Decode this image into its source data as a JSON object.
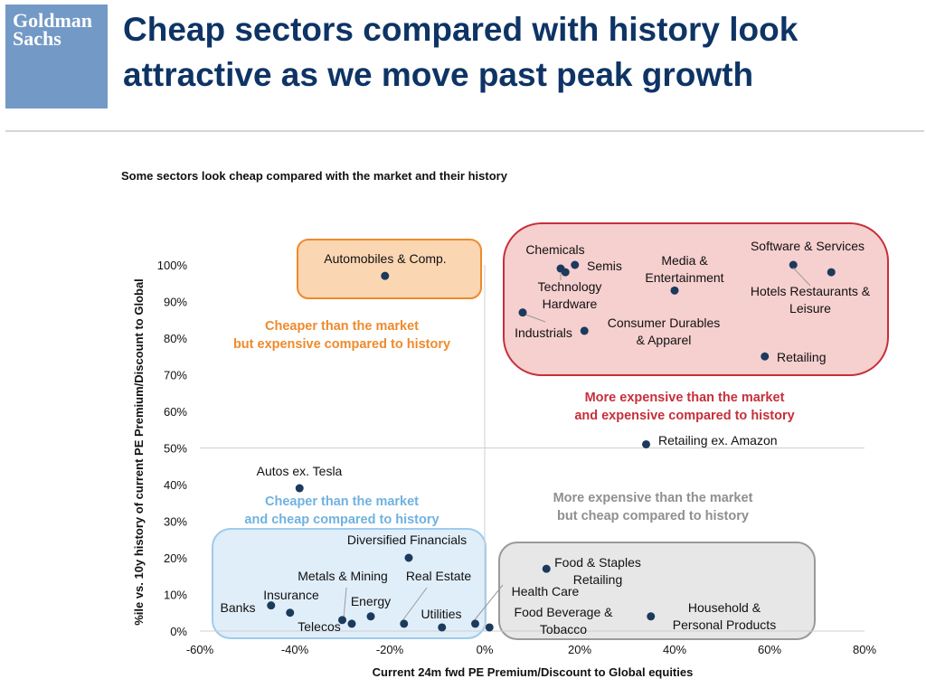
{
  "header": {
    "logo_line1": "Goldman",
    "logo_line2": "Sachs",
    "title": "Cheap sectors compared with history look attractive as we move past peak growth"
  },
  "colors": {
    "title": "#0e3465",
    "point": "#1b3a5c",
    "orange": "#ef8a2c",
    "red": "#c72f3a",
    "blue": "#6fb2e0",
    "grey": "#8f8f8f"
  },
  "chart_data": {
    "type": "scatter",
    "title": "Some sectors look cheap compared with the market and their history",
    "xlabel": "Current 24m fwd PE Premium/Discount to Global equities",
    "ylabel": "%ile vs. 10y history of current PE Premium/Discount to Global",
    "xlim": [
      -60,
      80
    ],
    "ylim": [
      0,
      100
    ],
    "x_ticks": [
      "-60%",
      "-40%",
      "-20%",
      "0%",
      "20%",
      "40%",
      "60%",
      "80%"
    ],
    "y_ticks": [
      "0%",
      "10%",
      "20%",
      "30%",
      "40%",
      "50%",
      "60%",
      "70%",
      "80%",
      "90%",
      "100%"
    ],
    "gridlines": false,
    "reference_lines": {
      "x": 0,
      "y": 50
    },
    "points": [
      {
        "label": "Automobiles & Comp.",
        "x": -21,
        "y": 97
      },
      {
        "label": "Chemicals",
        "x": 16,
        "y": 99
      },
      {
        "label": "Semis",
        "x": 19,
        "y": 100
      },
      {
        "label": "Technology Hardware",
        "x": 17,
        "y": 98
      },
      {
        "label": "Media & Entertainment",
        "x": 40,
        "y": 93
      },
      {
        "label": "Software & Services",
        "x": 65,
        "y": 100
      },
      {
        "label": "Hotels Restaurants & Leisure",
        "x": 73,
        "y": 98
      },
      {
        "label": "Industrials",
        "x": 8,
        "y": 87
      },
      {
        "label": "Consumer Durables & Apparel",
        "x": 21,
        "y": 82
      },
      {
        "label": "Retailing",
        "x": 59,
        "y": 75
      },
      {
        "label": "Retailing ex. Amazon",
        "x": 34,
        "y": 51
      },
      {
        "label": "Autos ex. Tesla",
        "x": -39,
        "y": 39
      },
      {
        "label": "Diversified Financials",
        "x": -16,
        "y": 20
      },
      {
        "label": "Food & Staples Retailing",
        "x": 13,
        "y": 17
      },
      {
        "label": "Banks",
        "x": -45,
        "y": 7
      },
      {
        "label": "Insurance",
        "x": -41,
        "y": 5
      },
      {
        "label": "Metals & Mining",
        "x": -30,
        "y": 3
      },
      {
        "label": "Telecos",
        "x": -28,
        "y": 2
      },
      {
        "label": "Energy",
        "x": -24,
        "y": 4
      },
      {
        "label": "Real Estate",
        "x": -17,
        "y": 2
      },
      {
        "label": "Utilities",
        "x": -9,
        "y": 1
      },
      {
        "label": "Health Care",
        "x": -2,
        "y": 2
      },
      {
        "label": "Food Beverage & Tobacco",
        "x": 1,
        "y": 1
      },
      {
        "label": "Household & Personal Products",
        "x": 35,
        "y": 4
      }
    ],
    "quadrant_annotations": [
      {
        "text": "Cheaper than the market but expensive compared to history",
        "color": "#ef8a2c"
      },
      {
        "text": "More expensive than the market and expensive compared to history",
        "color": "#c72f3a"
      },
      {
        "text": "Cheaper than the market and cheap compared to history",
        "color": "#6fb2e0"
      },
      {
        "text": "More expensive than the market but cheap compared to history",
        "color": "#8f8f8f"
      }
    ]
  }
}
